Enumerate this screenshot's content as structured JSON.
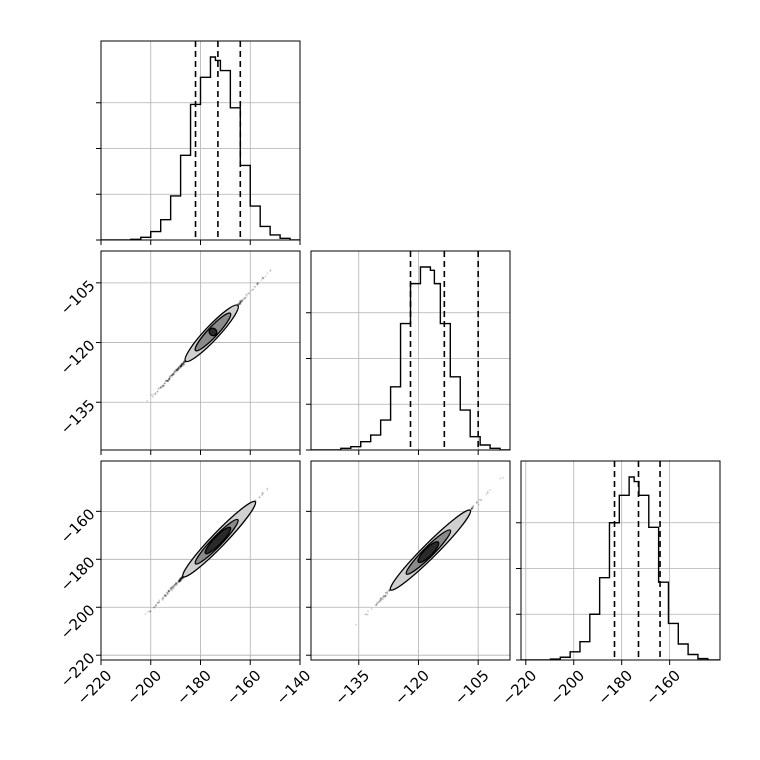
{
  "chart_data": {
    "type": "corner",
    "title": "",
    "parameters": [
      "",
      "",
      ""
    ],
    "axis_ranges": [
      [
        -220,
        -140
      ],
      [
        -147,
        -97
      ],
      [
        -222,
        -139
      ]
    ],
    "ticks": [
      [
        -220,
        -200,
        -180,
        -160,
        -140
      ],
      [
        -135,
        -120,
        -105
      ],
      [
        -220,
        -200,
        -180,
        -160
      ]
    ],
    "tick_labels": [
      [
        "−220",
        "−200",
        "−180",
        "−160",
        "−140"
      ],
      [
        "−135",
        "−120",
        "−105"
      ],
      [
        "−220",
        "−200",
        "−180",
        "−160"
      ]
    ],
    "grid": true,
    "line_color": "#000000",
    "grid_color": "#b0b0b0",
    "histograms": [
      {
        "bin_edges": [
          -220,
          -216,
          -212,
          -208,
          -204,
          -200,
          -196,
          -192,
          -188,
          -184,
          -180,
          -176,
          -174,
          -172,
          -168,
          -164,
          -160,
          -156,
          -152,
          -148,
          -144,
          -140
        ],
        "counts": [
          0,
          0,
          0,
          0.2,
          0.8,
          2.5,
          6,
          13,
          25,
          40,
          48,
          54,
          53,
          50,
          39,
          22,
          10,
          4,
          1.5,
          0.5,
          0
        ],
        "quantiles": [
          -182,
          -173,
          -164
        ]
      },
      {
        "bin_edges": [
          -147,
          -144.5,
          -142,
          -139.5,
          -137,
          -134.5,
          -132,
          -129.5,
          -127,
          -124.5,
          -122,
          -119.5,
          -117,
          -116,
          -114.5,
          -112,
          -109.5,
          -107,
          -104.5,
          -102,
          -99.5,
          -97
        ],
        "counts": [
          0,
          0,
          0,
          0.5,
          1,
          2.5,
          4.5,
          9,
          19,
          38,
          50,
          55,
          54,
          50,
          38,
          22,
          12,
          4,
          1.5,
          0.5,
          0
        ],
        "quantiles": [
          -122,
          -113.5,
          -105
        ]
      },
      {
        "bin_edges": [
          -222,
          -217.9,
          -213.8,
          -209.7,
          -205.6,
          -201.5,
          -197.4,
          -193.3,
          -189.2,
          -185.1,
          -181,
          -176.9,
          -174.8,
          -172.8,
          -168.7,
          -164.6,
          -160.5,
          -156.4,
          -152.3,
          -148.2,
          -144.1,
          -139
        ],
        "counts": [
          0,
          0,
          0,
          0.2,
          0.6,
          1.8,
          4,
          10,
          18,
          30,
          36,
          40,
          39,
          36,
          29,
          17,
          8,
          3.5,
          1.2,
          0.3,
          0
        ],
        "quantiles": [
          -183,
          -173,
          -164
        ]
      }
    ],
    "scatter": [
      {
        "row": 1,
        "col": 0,
        "x_start": -209,
        "x_end": -146,
        "y_start": -140,
        "y_end": -98,
        "contour_levels": [
          [
            -186,
            -165
          ],
          [
            -182,
            -168
          ],
          [
            -176,
            -174
          ]
        ]
      },
      {
        "row": 2,
        "col": 0,
        "x_start": -209,
        "x_end": -146,
        "y_start": -211,
        "y_end": -143,
        "contour_levels": [
          [
            -187,
            -158
          ],
          [
            -182,
            -165
          ],
          [
            -178,
            -168
          ]
        ]
      },
      {
        "row": 2,
        "col": 1,
        "x_start": -138,
        "x_end": -97,
        "y_start": -211,
        "y_end": -143,
        "contour_levels": [
          [
            -127,
            -107
          ],
          [
            -123,
            -112
          ],
          [
            -120,
            -115
          ]
        ]
      }
    ]
  }
}
